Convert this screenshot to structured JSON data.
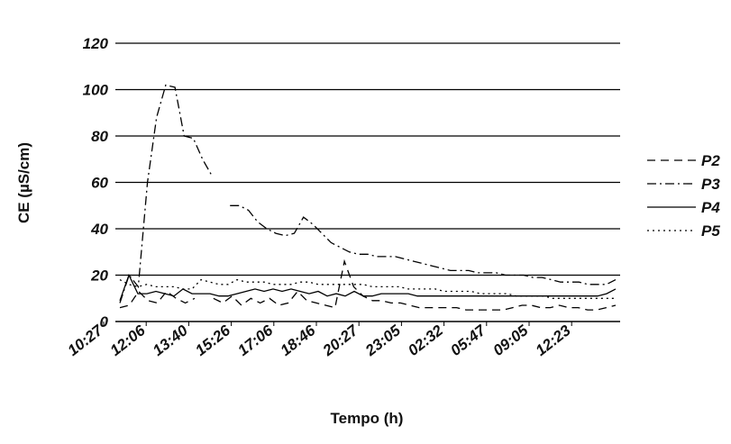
{
  "chart_data": {
    "type": "line",
    "xlabel": "Tempo (h)",
    "ylabel": "CE (µS/cm)",
    "ylim": [
      0,
      120
    ],
    "yticks": [
      "0",
      "20",
      "40",
      "60",
      "80",
      "100",
      "120"
    ],
    "xticks": [
      "10:27",
      "12:06",
      "13:40",
      "15:26",
      "17:06",
      "18:46",
      "20:27",
      "23:05",
      "02:32",
      "05:47",
      "09:05",
      "12:23"
    ],
    "grid": true,
    "legend_position": "right",
    "series": [
      {
        "name": "P2",
        "dash": "dash",
        "values": [
          6,
          7,
          13,
          9,
          8,
          13,
          10,
          8,
          10,
          null,
          10,
          8,
          11,
          7,
          10,
          8,
          10,
          7,
          8,
          13,
          9,
          8,
          7,
          6,
          26,
          15,
          11,
          9,
          9,
          8,
          8,
          7,
          6,
          6,
          6,
          6,
          6,
          5,
          5,
          5,
          5,
          5,
          6,
          7,
          7,
          6,
          6,
          7,
          6,
          6,
          5,
          5,
          6,
          7
        ]
      },
      {
        "name": "P3",
        "dash": "dashdot",
        "values": [
          8,
          20,
          15,
          60,
          88,
          102,
          101,
          80,
          79,
          70,
          63,
          null,
          50,
          50,
          48,
          43,
          40,
          38,
          37,
          38,
          45,
          42,
          38,
          34,
          32,
          30,
          29,
          29,
          28,
          28,
          28,
          27,
          26,
          25,
          24,
          23,
          22,
          22,
          22,
          21,
          21,
          21,
          20,
          20,
          20,
          19,
          19,
          18,
          17,
          17,
          17,
          16,
          16,
          16,
          18
        ]
      },
      {
        "name": "P4",
        "dash": "solid",
        "values": [
          9,
          20,
          12,
          12,
          13,
          12,
          11,
          14,
          12,
          12,
          12,
          11,
          11,
          12,
          13,
          14,
          13,
          14,
          13,
          14,
          13,
          12,
          13,
          11,
          12,
          11,
          13,
          11,
          11,
          12,
          12,
          12,
          12,
          11,
          11,
          11,
          11,
          11,
          11,
          11,
          11,
          11,
          11,
          11,
          11,
          11,
          11,
          11,
          11,
          11,
          11,
          11,
          11,
          11,
          12,
          14
        ]
      },
      {
        "name": "P5",
        "dash": "dot",
        "values": [
          18,
          16,
          15,
          16,
          15,
          15,
          15,
          14,
          14,
          18,
          17,
          16,
          16,
          18,
          17,
          17,
          17,
          16,
          16,
          16,
          17,
          17,
          16,
          16,
          16,
          16,
          16,
          16,
          15,
          15,
          15,
          15,
          14,
          14,
          14,
          14,
          13,
          13,
          13,
          13,
          12,
          12,
          12,
          12,
          11,
          11,
          11,
          11,
          10,
          10,
          10,
          10,
          10,
          10,
          10,
          10
        ]
      }
    ]
  }
}
